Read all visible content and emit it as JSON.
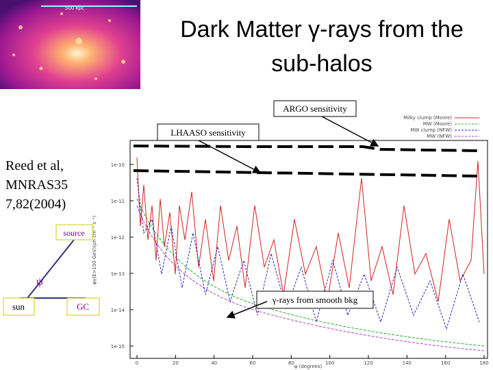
{
  "slide": {
    "title_lines": [
      "Dark Matter γ-rays from the",
      "sub-halos"
    ],
    "image_scale": "500 kpc",
    "reference_lines": [
      "Reed et al,",
      "MNRAS35",
      "7,82(2004)"
    ],
    "diagram": {
      "source": "source",
      "angle": "ψ",
      "sun": "sun",
      "gc": "GC"
    },
    "callouts": {
      "argo": "ARGO sensitivity",
      "lhaaso": "LHAASO sensitivity",
      "bkg": "γ-rays from smooth bkg"
    },
    "plot": {
      "y_label": "φγ(E>100 GeV)(ph cm⁻² s⁻¹)",
      "x_label": "ψ (degrees)",
      "xticks": [
        "0",
        "20",
        "40",
        "60",
        "80",
        "100",
        "120",
        "140",
        "160",
        "180"
      ],
      "yticks": [
        "1e-10",
        "1e-11",
        "1e-12",
        "1e-13",
        "1e-14",
        "1e-15"
      ],
      "legend": [
        {
          "name": "Milky clump (Moore)",
          "color": "#d42020"
        },
        {
          "name": "MW (Moore)",
          "color": "#20b020"
        },
        {
          "name": "MW clump (NFW)",
          "color": "#2020c0"
        },
        {
          "name": "MW (NFW)",
          "color": "#b040c0"
        }
      ]
    }
  }
}
